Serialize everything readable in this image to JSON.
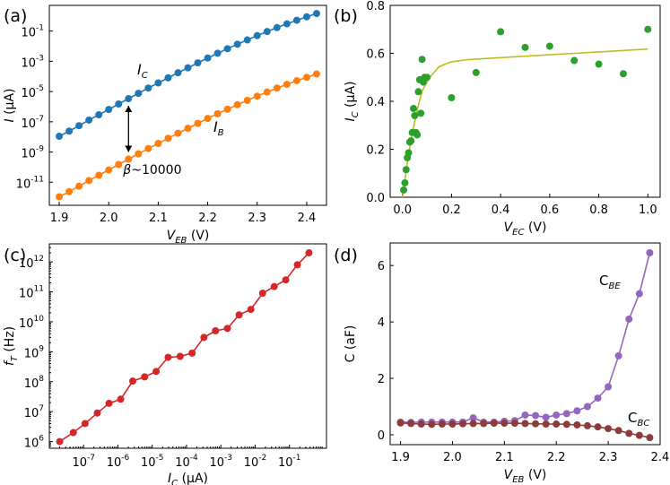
{
  "chart_data": [
    {
      "id": "a",
      "panel_label": "(a)",
      "type": "line",
      "yscale": "log",
      "xlabel": {
        "main": "V",
        "sub": "EB",
        "unit": " (V)"
      },
      "ylabel": {
        "main": "I",
        "unit": " (μA)"
      },
      "xlim": [
        1.88,
        2.44
      ],
      "ylim": [
        3e-13,
        5
      ],
      "xticks": [
        1.9,
        2.0,
        2.1,
        2.2,
        2.3,
        2.4
      ],
      "xtick_labels": [
        "1.9",
        "2.0",
        "2.1",
        "2.2",
        "2.3",
        "2.4"
      ],
      "yticks": [
        1e-11,
        1e-09,
        1e-07,
        1e-05,
        0.001,
        0.1
      ],
      "ytick_labels": [
        {
          "b": "10",
          "e": "-11"
        },
        {
          "b": "10",
          "e": "-9"
        },
        {
          "b": "10",
          "e": "-7"
        },
        {
          "b": "10",
          "e": "-5"
        },
        {
          "b": "10",
          "e": "-3"
        },
        {
          "b": "10",
          "e": "-1"
        }
      ],
      "x": [
        1.9,
        1.92,
        1.94,
        1.96,
        1.98,
        2.0,
        2.02,
        2.04,
        2.06,
        2.08,
        2.1,
        2.12,
        2.14,
        2.16,
        2.18,
        2.2,
        2.22,
        2.24,
        2.26,
        2.28,
        2.3,
        2.32,
        2.34,
        2.36,
        2.38,
        2.4,
        2.42
      ],
      "series": [
        {
          "label": {
            "main": "I",
            "sub": "C"
          },
          "color": "#1f77b4",
          "values": [
            1.1e-08,
            2.4e-08,
            5.5e-08,
            1.3e-07,
            2.9e-07,
            6.5e-07,
            1.5e-06,
            3.4e-06,
            7.6e-06,
            1.7e-05,
            3.7e-05,
            8.1e-05,
            0.000175,
            0.00037,
            0.00079,
            0.00165,
            0.0034,
            0.0068,
            0.0135,
            0.026,
            0.05,
            0.093,
            0.17,
            0.3,
            0.52,
            0.88,
            1.45
          ]
        },
        {
          "label": {
            "main": "I",
            "sub": "B"
          },
          "color": "#ff7f0e",
          "values": [
            1.1e-12,
            2.4e-12,
            5.5e-12,
            1.3e-11,
            2.9e-11,
            6.5e-11,
            1.5e-10,
            3.4e-10,
            7.6e-10,
            1.7e-09,
            3.7e-09,
            8.1e-09,
            1.75e-08,
            3.7e-08,
            7.9e-08,
            1.65e-07,
            3.4e-07,
            6.8e-07,
            1.35e-06,
            2.6e-06,
            5e-06,
            9.3e-06,
            1.7e-05,
            3e-05,
            5.2e-05,
            8.8e-05,
            0.000145
          ]
        }
      ],
      "annotation": {
        "greek": "β",
        "text": "~10000",
        "arrow_x": 2.04
      }
    },
    {
      "id": "b",
      "panel_label": "(b)",
      "type": "scatter",
      "xlabel": {
        "main": "V",
        "sub": "EC",
        "unit": " (V)"
      },
      "ylabel": {
        "main": "I",
        "sub": "C",
        "unit": " (μA)"
      },
      "xlim": [
        -0.05,
        1.05
      ],
      "ylim": [
        0.0,
        0.8
      ],
      "xticks": [
        0.0,
        0.2,
        0.4,
        0.6,
        0.8,
        1.0
      ],
      "xtick_labels": [
        "0.0",
        "0.2",
        "0.4",
        "0.6",
        "0.8",
        "1.0"
      ],
      "yticks": [
        0.0,
        0.2,
        0.4,
        0.6,
        0.8
      ],
      "ytick_labels": [
        "0.0",
        "0.2",
        "0.4",
        "0.6",
        "0.8"
      ],
      "points": {
        "color": "#2ca02c",
        "x": [
          0.005,
          0.01,
          0.015,
          0.02,
          0.025,
          0.03,
          0.035,
          0.04,
          0.045,
          0.05,
          0.055,
          0.06,
          0.065,
          0.07,
          0.075,
          0.08,
          0.085,
          0.09,
          0.1,
          0.2,
          0.3,
          0.4,
          0.5,
          0.6,
          0.7,
          0.8,
          0.9,
          1.0
        ],
        "y": [
          0.03,
          0.06,
          0.115,
          0.165,
          0.185,
          0.23,
          0.235,
          0.27,
          0.37,
          0.34,
          0.27,
          0.26,
          0.44,
          0.49,
          0.35,
          0.575,
          0.48,
          0.5,
          0.5,
          0.415,
          0.52,
          0.69,
          0.625,
          0.63,
          0.57,
          0.555,
          0.515,
          0.7
        ]
      },
      "fit": {
        "color": "#bcbd22",
        "x": [
          0.0,
          0.02,
          0.04,
          0.06,
          0.08,
          0.1,
          0.12,
          0.15,
          0.2,
          0.25,
          0.3,
          0.4,
          0.5,
          0.6,
          0.7,
          0.8,
          0.9,
          1.0
        ],
        "y": [
          0.0,
          0.146,
          0.266,
          0.364,
          0.443,
          0.48,
          0.51,
          0.545,
          0.565,
          0.572,
          0.576,
          0.582,
          0.588,
          0.594,
          0.6,
          0.606,
          0.612,
          0.618
        ]
      }
    },
    {
      "id": "c",
      "panel_label": "(c)",
      "type": "line",
      "xscale": "log",
      "yscale": "log",
      "xlabel": {
        "main": "I",
        "sub": "C",
        "unit": " (μA)"
      },
      "ylabel": {
        "main": "f",
        "sub": "T",
        "unit": " (Hz)"
      },
      "xlim": [
        1e-08,
        1.2
      ],
      "ylim": [
        600000.0,
        4000000000000.0
      ],
      "xticks": [
        1e-07,
        1e-06,
        1e-05,
        0.0001,
        0.001,
        0.01,
        0.1
      ],
      "xtick_labels": [
        {
          "b": "10",
          "e": "-7"
        },
        {
          "b": "10",
          "e": "-6"
        },
        {
          "b": "10",
          "e": "-5"
        },
        {
          "b": "10",
          "e": "-4"
        },
        {
          "b": "10",
          "e": "-3"
        },
        {
          "b": "10",
          "e": "-2"
        },
        {
          "b": "10",
          "e": "-1"
        }
      ],
      "yticks": [
        1000000.0,
        10000000.0,
        100000000.0,
        1000000000.0,
        10000000000.0,
        100000000000.0,
        1000000000000.0
      ],
      "ytick_labels": [
        {
          "b": "10",
          "e": "6"
        },
        {
          "b": "10",
          "e": "7"
        },
        {
          "b": "10",
          "e": "8"
        },
        {
          "b": "10",
          "e": "9"
        },
        {
          "b": "10",
          "e": "10"
        },
        {
          "b": "10",
          "e": "11"
        },
        {
          "b": "10",
          "e": "12"
        }
      ],
      "series": [
        {
          "color": "#d62728",
          "x": [
            2e-08,
            5e-08,
            1.1e-07,
            2.5e-07,
            5.5e-07,
            1.2e-06,
            2.7e-06,
            6e-06,
            1.3e-05,
            2.9e-05,
            6.5e-05,
            0.000145,
            0.00032,
            0.0007,
            0.00155,
            0.0034,
            0.0075,
            0.0165,
            0.036,
            0.078,
            0.17,
            0.37
          ],
          "y": [
            1000000.0,
            2000000.0,
            4000000.0,
            9000000.0,
            19000000.0,
            26000000.0,
            105000000.0,
            145000000.0,
            220000000.0,
            650000000.0,
            700000000.0,
            900000000.0,
            3000000000.0,
            5000000000.0,
            6000000000.0,
            17000000000.0,
            26000000000.0,
            90000000000.0,
            150000000000.0,
            250000000000.0,
            800000000000.0,
            2000000000000.0
          ]
        }
      ]
    },
    {
      "id": "d",
      "panel_label": "(d)",
      "type": "line",
      "xlabel": {
        "main": "V",
        "sub": "EB",
        "unit": " (V)"
      },
      "ylabel": {
        "main": "C (aF)"
      },
      "xlim": [
        1.88,
        2.4
      ],
      "ylim": [
        -0.35,
        6.8
      ],
      "xticks": [
        1.9,
        2.0,
        2.1,
        2.2,
        2.3,
        2.4
      ],
      "xtick_labels": [
        "1.9",
        "2.0",
        "2.1",
        "2.2",
        "2.3",
        "2.4"
      ],
      "yticks": [
        0,
        2,
        4,
        6
      ],
      "ytick_labels": [
        "0",
        "2",
        "4",
        "6"
      ],
      "x": [
        1.9,
        1.92,
        1.94,
        1.96,
        1.98,
        2.0,
        2.02,
        2.04,
        2.06,
        2.08,
        2.1,
        2.12,
        2.14,
        2.16,
        2.18,
        2.2,
        2.22,
        2.24,
        2.26,
        2.28,
        2.3,
        2.32,
        2.34,
        2.36,
        2.38
      ],
      "series": [
        {
          "label": {
            "main": "C",
            "sub": "BE"
          },
          "color": "#9467bd",
          "values": [
            0.45,
            0.44,
            0.45,
            0.45,
            0.45,
            0.45,
            0.45,
            0.6,
            0.45,
            0.45,
            0.48,
            0.5,
            0.7,
            0.68,
            0.62,
            0.7,
            0.75,
            0.85,
            1.0,
            1.3,
            1.7,
            2.8,
            4.1,
            5.0,
            6.45
          ]
        },
        {
          "label": {
            "main": "C",
            "sub": "BC"
          },
          "color": "#8c3b3b",
          "values": [
            0.42,
            0.4,
            0.38,
            0.37,
            0.38,
            0.38,
            0.39,
            0.4,
            0.4,
            0.41,
            0.41,
            0.41,
            0.4,
            0.39,
            0.38,
            0.38,
            0.37,
            0.35,
            0.32,
            0.28,
            0.22,
            0.15,
            0.05,
            -0.02,
            -0.1
          ]
        }
      ]
    }
  ]
}
